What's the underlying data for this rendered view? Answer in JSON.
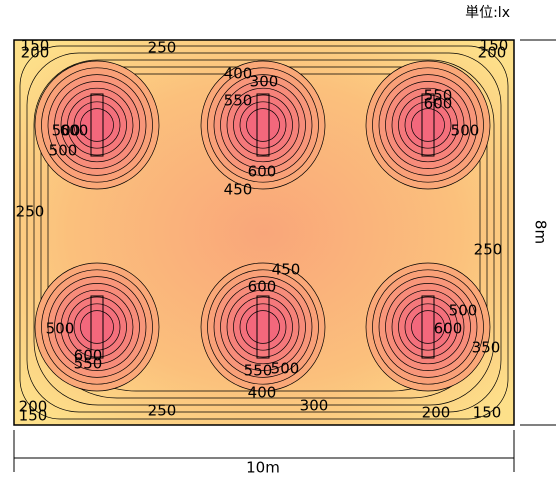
{
  "unit_label": "単位:lx",
  "width_label": "10m",
  "height_label": "8m",
  "contour_labels": [
    "150",
    "200",
    "250",
    "150",
    "200",
    "400",
    "300",
    "550",
    "550",
    "600",
    "500",
    "600",
    "500",
    "500",
    "600",
    "450",
    "250",
    "250",
    "450",
    "600",
    "500",
    "500",
    "600",
    "350",
    "600",
    "550",
    "550",
    "500",
    "400",
    "300",
    "200",
    "150",
    "250",
    "200",
    "150"
  ]
}
